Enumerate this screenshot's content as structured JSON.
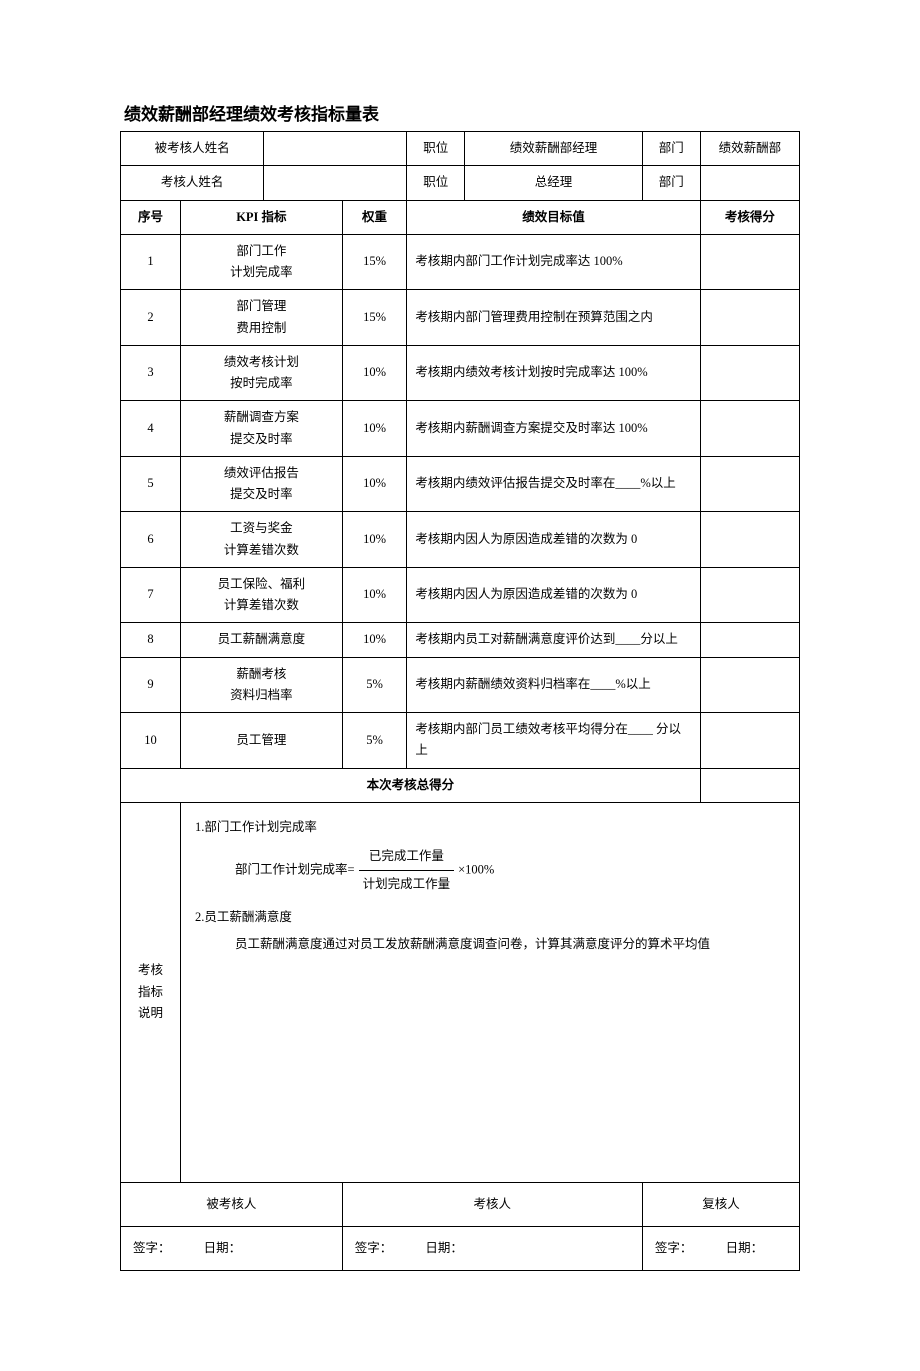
{
  "title": "绩效薪酬部经理绩效考核指标量表",
  "header": {
    "evaluee_name_label": "被考核人姓名",
    "evaluee_name_value": "",
    "position_label_1": "职位",
    "position_value_1": "绩效薪酬部经理",
    "dept_label_1": "部门",
    "dept_value_1": "绩效薪酬部",
    "evaluator_name_label": "考核人姓名",
    "evaluator_name_value": "",
    "position_label_2": "职位",
    "position_value_2": "总经理",
    "dept_label_2": "部门",
    "dept_value_2": ""
  },
  "columns": {
    "seq": "序号",
    "kpi": "KPI 指标",
    "weight": "权重",
    "target": "绩效目标值",
    "score": "考核得分"
  },
  "rows": [
    {
      "seq": "1",
      "kpi_l1": "部门工作",
      "kpi_l2": "计划完成率",
      "weight": "15%",
      "target": "考核期内部门工作计划完成率达 100%",
      "score": ""
    },
    {
      "seq": "2",
      "kpi_l1": "部门管理",
      "kpi_l2": "费用控制",
      "weight": "15%",
      "target": "考核期内部门管理费用控制在预算范围之内",
      "score": ""
    },
    {
      "seq": "3",
      "kpi_l1": "绩效考核计划",
      "kpi_l2": "按时完成率",
      "weight": "10%",
      "target": "考核期内绩效考核计划按时完成率达 100%",
      "score": ""
    },
    {
      "seq": "4",
      "kpi_l1": "薪酬调查方案",
      "kpi_l2": "提交及时率",
      "weight": "10%",
      "target": "考核期内薪酬调查方案提交及时率达 100%",
      "score": ""
    },
    {
      "seq": "5",
      "kpi_l1": "绩效评估报告",
      "kpi_l2": "提交及时率",
      "weight": "10%",
      "target": "考核期内绩效评估报告提交及时率在____%以上",
      "score": ""
    },
    {
      "seq": "6",
      "kpi_l1": "工资与奖金",
      "kpi_l2": "计算差错次数",
      "weight": "10%",
      "target": "考核期内因人为原因造成差错的次数为 0",
      "score": ""
    },
    {
      "seq": "7",
      "kpi_l1": "员工保险、福利",
      "kpi_l2": "计算差错次数",
      "weight": "10%",
      "target": "考核期内因人为原因造成差错的次数为 0",
      "score": ""
    },
    {
      "seq": "8",
      "kpi_l1": "员工薪酬满意度",
      "kpi_l2": "",
      "weight": "10%",
      "target": "考核期内员工对薪酬满意度评价达到____分以上",
      "score": ""
    },
    {
      "seq": "9",
      "kpi_l1": "薪酬考核",
      "kpi_l2": "资料归档率",
      "weight": "5%",
      "target": "考核期内薪酬绩效资料归档率在____%以上",
      "score": ""
    },
    {
      "seq": "10",
      "kpi_l1": "员工管理",
      "kpi_l2": "",
      "weight": "5%",
      "target": "考核期内部门员工绩效考核平均得分在____ 分以上",
      "score": ""
    }
  ],
  "total_label": "本次考核总得分",
  "total_value": "",
  "notes": {
    "side_l1": "考核",
    "side_l2": "指标",
    "side_l3": "说明",
    "item1_title": "1.部门工作计划完成率",
    "item1_formula_prefix": "部门工作计划完成率=",
    "item1_formula_top": "已完成工作量",
    "item1_formula_bot": "计划完成工作量",
    "item1_formula_suffix": "×100%",
    "item2_title": "2.员工薪酬满意度",
    "item2_desc": "员工薪酬满意度通过对员工发放薪酬满意度调查问卷，计算其满意度评分的算术平均值"
  },
  "signatures": {
    "col1_label": "被考核人",
    "col2_label": "考核人",
    "col3_label": "复核人",
    "sign_label": "签字：",
    "date_label": "日期："
  },
  "layout": {
    "col_widths_pct": [
      8,
      20,
      10,
      10,
      30,
      6,
      7,
      9
    ],
    "font_family": "SimSun",
    "border_color": "#000000",
    "background_color": "#ffffff",
    "text_color": "#000000"
  }
}
